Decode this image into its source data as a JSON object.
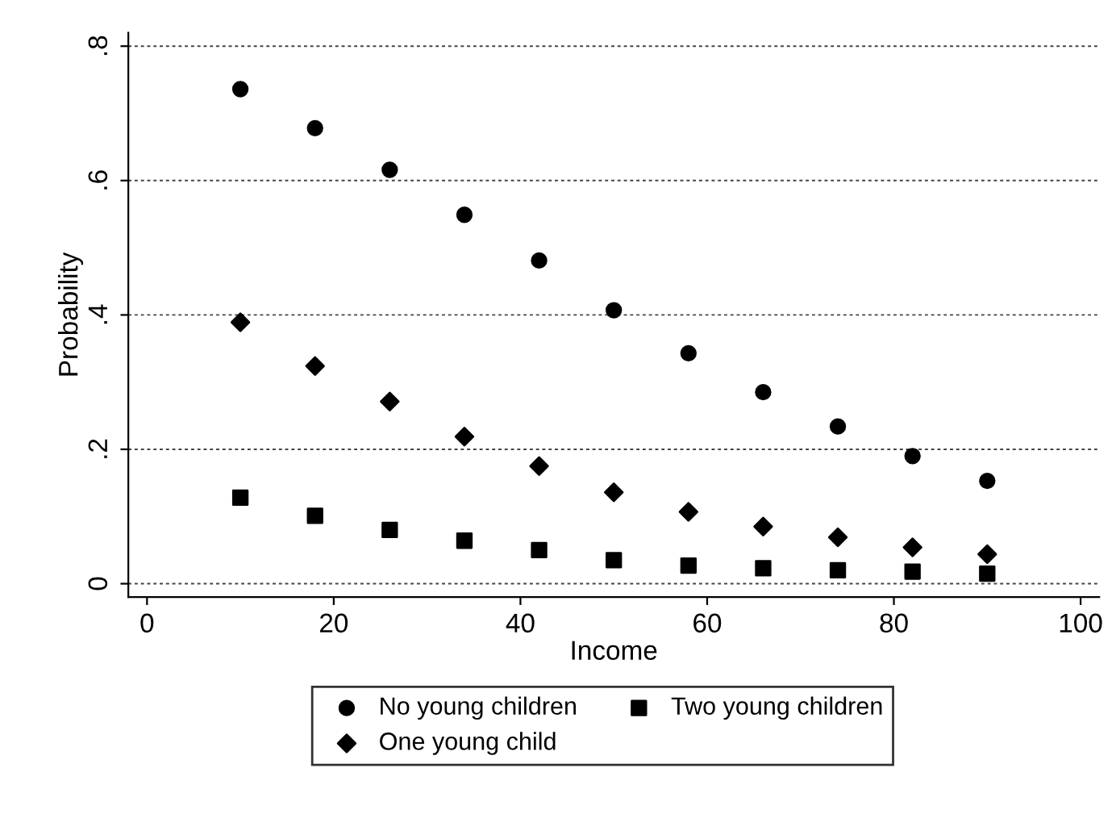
{
  "chart_data": {
    "type": "scatter",
    "xlabel": "Income",
    "ylabel": "Probability",
    "x": [
      10,
      18,
      26,
      34,
      42,
      50,
      58,
      66,
      74,
      82,
      90
    ],
    "series": [
      {
        "name": "No young children",
        "color": "#000000",
        "marker": "circle",
        "values": [
          0.736,
          0.678,
          0.616,
          0.549,
          0.481,
          0.407,
          0.343,
          0.285,
          0.234,
          0.19,
          0.153
        ]
      },
      {
        "name": "One young child",
        "color": "#000000",
        "marker": "diamond",
        "values": [
          0.389,
          0.324,
          0.271,
          0.219,
          0.175,
          0.136,
          0.107,
          0.085,
          0.069,
          0.054,
          0.044
        ]
      },
      {
        "name": "Two young children",
        "color": "#000000",
        "marker": "square",
        "values": [
          0.128,
          0.101,
          0.08,
          0.064,
          0.05,
          0.035,
          0.027,
          0.023,
          0.02,
          0.018,
          0.015
        ]
      }
    ],
    "xlim": [
      -2,
      102
    ],
    "ylim": [
      -0.02,
      0.82
    ],
    "xticks": [
      0,
      20,
      40,
      60,
      80,
      100
    ],
    "yticks": [
      {
        "value": 0,
        "label": "0"
      },
      {
        "value": 0.2,
        "label": ".2"
      },
      {
        "value": 0.4,
        "label": ".4"
      },
      {
        "value": 0.6,
        "label": ".6"
      },
      {
        "value": 0.8,
        "label": ".8"
      }
    ],
    "grid": "y",
    "legend": "bottom"
  }
}
